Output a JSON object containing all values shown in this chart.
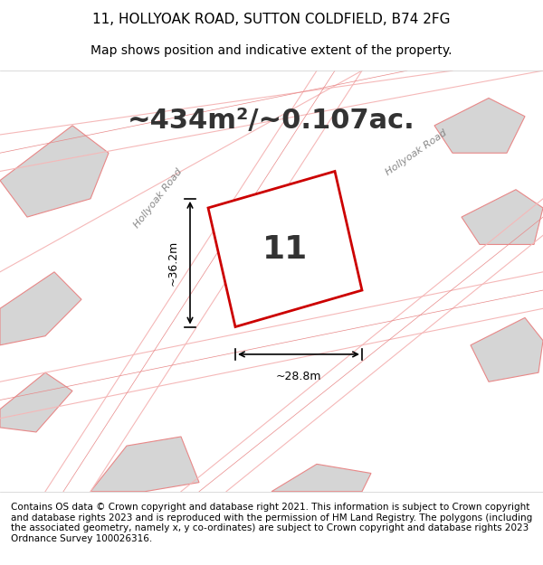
{
  "title_line1": "11, HOLLYOAK ROAD, SUTTON COLDFIELD, B74 2FG",
  "title_line2": "Map shows position and indicative extent of the property.",
  "area_text": "~434m²/~0.107ac.",
  "property_number": "11",
  "dim_width": "~28.8m",
  "dim_height": "~36.2m",
  "footer_text": "Contains OS data © Crown copyright and database right 2021. This information is subject to Crown copyright and database rights 2023 and is reproduced with the permission of HM Land Registry. The polygons (including the associated geometry, namely x, y co-ordinates) are subject to Crown copyright and database rights 2023 Ordnance Survey 100026316.",
  "background_color": "#f0eeeb",
  "map_background": "#ececec",
  "road_color_light": "#f5b8b8",
  "road_color_dark": "#e88888",
  "highlight_color": "#cc0000",
  "building_fill": "#d8d8d8",
  "building_stroke": "#f08080",
  "highlight_fill": "none",
  "road_label": "Hollyoak Road",
  "title_fontsize": 11,
  "subtitle_fontsize": 10,
  "area_fontsize": 22,
  "number_fontsize": 26,
  "footer_fontsize": 7.5
}
